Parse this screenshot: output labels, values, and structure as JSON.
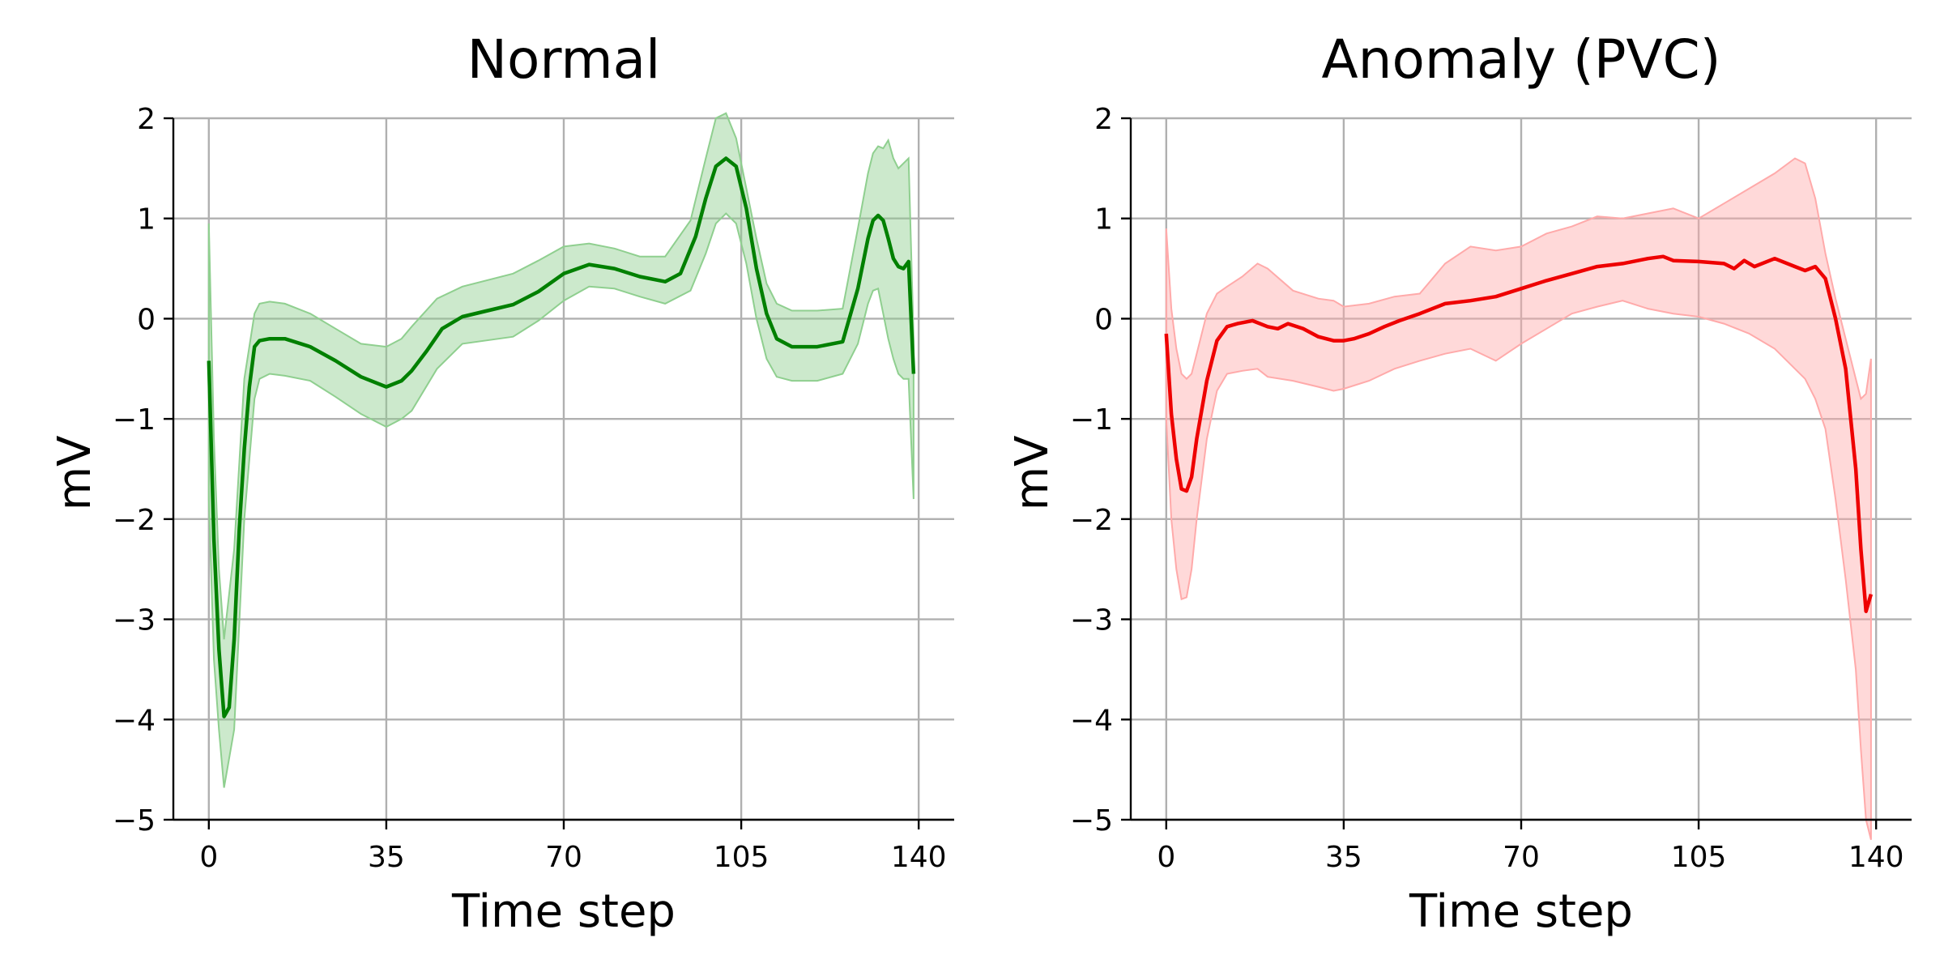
{
  "chart_data": [
    {
      "type": "line",
      "title": "Normal",
      "xlabel": "Time step",
      "ylabel": "mV",
      "xlim": [
        -7,
        147
      ],
      "ylim": [
        -5,
        2
      ],
      "xticks": [
        0,
        35,
        70,
        105,
        140
      ],
      "xtick_labels": [
        "0",
        "35",
        "70",
        "105",
        "140"
      ],
      "yticks": [
        2,
        1,
        0,
        -1,
        -2,
        -3,
        -4,
        -5
      ],
      "ytick_labels": [
        "2",
        "1",
        "0",
        "−1",
        "−2",
        "−3",
        "−4",
        "−5"
      ],
      "grid": true,
      "line_color": "#008000",
      "band_color": "#8fcf8f",
      "series": [
        {
          "kind": "mean",
          "x": [
            0,
            1,
            2,
            3,
            4,
            5,
            6,
            7,
            8,
            9,
            10,
            12,
            15,
            20,
            25,
            30,
            35,
            38,
            40,
            43,
            46,
            50,
            55,
            60,
            65,
            70,
            75,
            80,
            85,
            90,
            93,
            96,
            98,
            100,
            102,
            104,
            106,
            108,
            110,
            112,
            115,
            120,
            125,
            128,
            130,
            131,
            132,
            133,
            134,
            135,
            136,
            137,
            138,
            139
          ],
          "y": [
            -0.42,
            -2.2,
            -3.3,
            -3.97,
            -3.88,
            -3.2,
            -2.1,
            -1.3,
            -0.68,
            -0.28,
            -0.22,
            -0.2,
            -0.2,
            -0.28,
            -0.42,
            -0.58,
            -0.68,
            -0.62,
            -0.52,
            -0.32,
            -0.1,
            0.02,
            0.08,
            0.14,
            0.27,
            0.45,
            0.54,
            0.5,
            0.42,
            0.37,
            0.45,
            0.82,
            1.2,
            1.52,
            1.6,
            1.52,
            1.1,
            0.5,
            0.05,
            -0.2,
            -0.28,
            -0.28,
            -0.23,
            0.3,
            0.8,
            0.98,
            1.03,
            0.98,
            0.8,
            0.6,
            0.52,
            0.5,
            0.57,
            -0.55
          ]
        },
        {
          "kind": "band_upper",
          "x": [
            0,
            1,
            2,
            3,
            5,
            7,
            9,
            10,
            12,
            15,
            20,
            25,
            30,
            35,
            38,
            40,
            45,
            50,
            60,
            65,
            70,
            75,
            80,
            85,
            90,
            95,
            98,
            100,
            102,
            104,
            106,
            108,
            110,
            112,
            115,
            120,
            125,
            128,
            130,
            131,
            132,
            133,
            134,
            135,
            136,
            137,
            138,
            139
          ],
          "y": [
            0.95,
            -1.2,
            -2.5,
            -3.2,
            -2.3,
            -0.6,
            0.05,
            0.15,
            0.17,
            0.15,
            0.05,
            -0.1,
            -0.25,
            -0.28,
            -0.2,
            -0.08,
            0.2,
            0.32,
            0.45,
            0.58,
            0.72,
            0.75,
            0.7,
            0.62,
            0.62,
            0.98,
            1.6,
            2.0,
            2.05,
            1.8,
            1.3,
            0.8,
            0.35,
            0.15,
            0.08,
            0.08,
            0.1,
            0.9,
            1.45,
            1.65,
            1.72,
            1.7,
            1.78,
            1.6,
            1.5,
            1.55,
            1.6,
            -0.2
          ]
        },
        {
          "kind": "band_lower",
          "x": [
            0,
            1,
            2,
            3,
            5,
            7,
            9,
            10,
            12,
            15,
            20,
            25,
            30,
            35,
            38,
            40,
            45,
            50,
            60,
            65,
            70,
            75,
            80,
            85,
            90,
            95,
            98,
            100,
            102,
            104,
            106,
            108,
            110,
            112,
            115,
            120,
            125,
            128,
            130,
            131,
            132,
            133,
            134,
            135,
            136,
            137,
            138,
            139
          ],
          "y": [
            -1.8,
            -3.4,
            -4.1,
            -4.68,
            -4.1,
            -2.0,
            -0.8,
            -0.6,
            -0.55,
            -0.57,
            -0.62,
            -0.78,
            -0.95,
            -1.08,
            -1.0,
            -0.92,
            -0.5,
            -0.25,
            -0.18,
            -0.02,
            0.18,
            0.32,
            0.3,
            0.22,
            0.15,
            0.28,
            0.65,
            0.95,
            1.05,
            0.95,
            0.55,
            0.0,
            -0.4,
            -0.58,
            -0.62,
            -0.62,
            -0.55,
            -0.25,
            0.15,
            0.28,
            0.3,
            0.05,
            -0.2,
            -0.4,
            -0.55,
            -0.6,
            -0.6,
            -1.8
          ]
        }
      ]
    },
    {
      "type": "line",
      "title": "Anomaly (PVC)",
      "xlabel": "Time step",
      "ylabel": "mV",
      "xlim": [
        -7,
        147
      ],
      "ylim": [
        -5,
        2
      ],
      "xticks": [
        0,
        35,
        70,
        105,
        140
      ],
      "xtick_labels": [
        "0",
        "35",
        "70",
        "105",
        "140"
      ],
      "yticks": [
        2,
        1,
        0,
        -1,
        -2,
        -3,
        -4,
        -5
      ],
      "ytick_labels": [
        "2",
        "1",
        "0",
        "−1",
        "−2",
        "−3",
        "−4",
        "−5"
      ],
      "grid": true,
      "line_color": "#ee0000",
      "band_color": "#ffaaaa",
      "series": [
        {
          "kind": "mean",
          "x": [
            0,
            1,
            2,
            3,
            4,
            5,
            6,
            8,
            10,
            12,
            14,
            17,
            20,
            22,
            24,
            27,
            30,
            33,
            35,
            37,
            40,
            43,
            46,
            50,
            55,
            60,
            65,
            70,
            75,
            80,
            85,
            90,
            95,
            98,
            100,
            105,
            110,
            112,
            114,
            116,
            120,
            124,
            126,
            128,
            130,
            132,
            134,
            136,
            137,
            138,
            139
          ],
          "y": [
            -0.15,
            -0.95,
            -1.4,
            -1.7,
            -1.72,
            -1.58,
            -1.2,
            -0.62,
            -0.22,
            -0.08,
            -0.05,
            -0.02,
            -0.08,
            -0.1,
            -0.05,
            -0.1,
            -0.18,
            -0.22,
            -0.22,
            -0.2,
            -0.15,
            -0.08,
            -0.02,
            0.05,
            0.15,
            0.18,
            0.22,
            0.3,
            0.38,
            0.45,
            0.52,
            0.55,
            0.6,
            0.62,
            0.58,
            0.57,
            0.55,
            0.5,
            0.58,
            0.52,
            0.6,
            0.52,
            0.48,
            0.52,
            0.4,
            0.0,
            -0.5,
            -1.5,
            -2.3,
            -2.92,
            -2.75
          ]
        },
        {
          "kind": "band_upper",
          "x": [
            0,
            1,
            2,
            3,
            4,
            5,
            6,
            8,
            10,
            12,
            15,
            18,
            20,
            25,
            30,
            33,
            35,
            40,
            45,
            50,
            55,
            60,
            65,
            70,
            75,
            80,
            85,
            90,
            95,
            100,
            105,
            110,
            115,
            120,
            124,
            126,
            128,
            130,
            132,
            134,
            136,
            137,
            138,
            139
          ],
          "y": [
            0.9,
            0.1,
            -0.3,
            -0.55,
            -0.6,
            -0.55,
            -0.35,
            0.05,
            0.25,
            0.32,
            0.42,
            0.55,
            0.5,
            0.28,
            0.2,
            0.18,
            0.12,
            0.15,
            0.22,
            0.25,
            0.55,
            0.72,
            0.68,
            0.72,
            0.85,
            0.92,
            1.02,
            1.0,
            1.05,
            1.1,
            1.0,
            1.15,
            1.3,
            1.45,
            1.6,
            1.55,
            1.2,
            0.65,
            0.2,
            -0.2,
            -0.6,
            -0.8,
            -0.75,
            -0.4
          ]
        },
        {
          "kind": "band_lower",
          "x": [
            0,
            1,
            2,
            3,
            4,
            5,
            6,
            8,
            10,
            12,
            15,
            18,
            20,
            25,
            30,
            33,
            35,
            40,
            45,
            50,
            55,
            60,
            65,
            70,
            75,
            80,
            85,
            90,
            95,
            100,
            105,
            110,
            115,
            120,
            124,
            126,
            128,
            130,
            132,
            134,
            136,
            137,
            138,
            139
          ],
          "y": [
            -1.0,
            -2.0,
            -2.5,
            -2.8,
            -2.78,
            -2.5,
            -2.0,
            -1.2,
            -0.72,
            -0.55,
            -0.52,
            -0.5,
            -0.58,
            -0.62,
            -0.68,
            -0.72,
            -0.7,
            -0.62,
            -0.5,
            -0.42,
            -0.35,
            -0.3,
            -0.42,
            -0.25,
            -0.1,
            0.05,
            0.12,
            0.18,
            0.1,
            0.05,
            0.02,
            -0.05,
            -0.15,
            -0.3,
            -0.5,
            -0.6,
            -0.8,
            -1.1,
            -1.8,
            -2.6,
            -3.5,
            -4.3,
            -5.0,
            -5.2
          ]
        }
      ]
    }
  ]
}
